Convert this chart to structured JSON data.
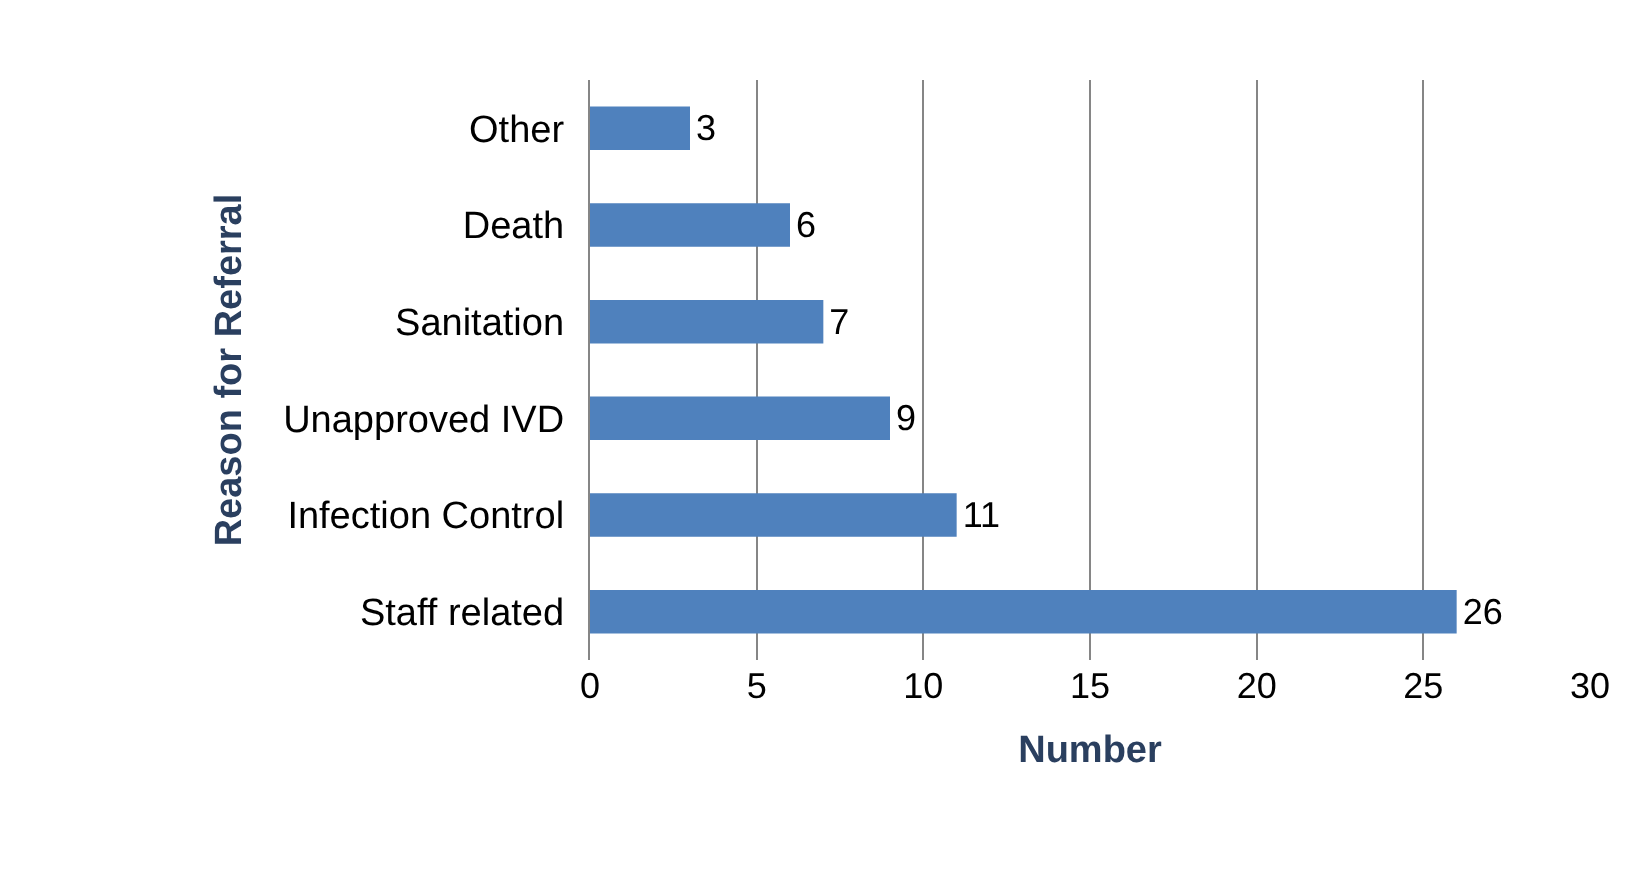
{
  "chart_data": {
    "type": "bar",
    "orientation": "horizontal",
    "xlabel": "Number",
    "ylabel": "Reason for Referral",
    "categories": [
      "Other",
      "Death",
      "Sanitation",
      "Unapproved IVD",
      "Infection Control",
      "Staff related"
    ],
    "values": [
      3,
      6,
      7,
      9,
      11,
      26
    ],
    "color": "#4f81bd",
    "xlim": [
      0,
      30
    ],
    "xticks": [
      0,
      5,
      10,
      15,
      20,
      25,
      30
    ],
    "grid": "x",
    "data_labels": true,
    "legend": false
  }
}
